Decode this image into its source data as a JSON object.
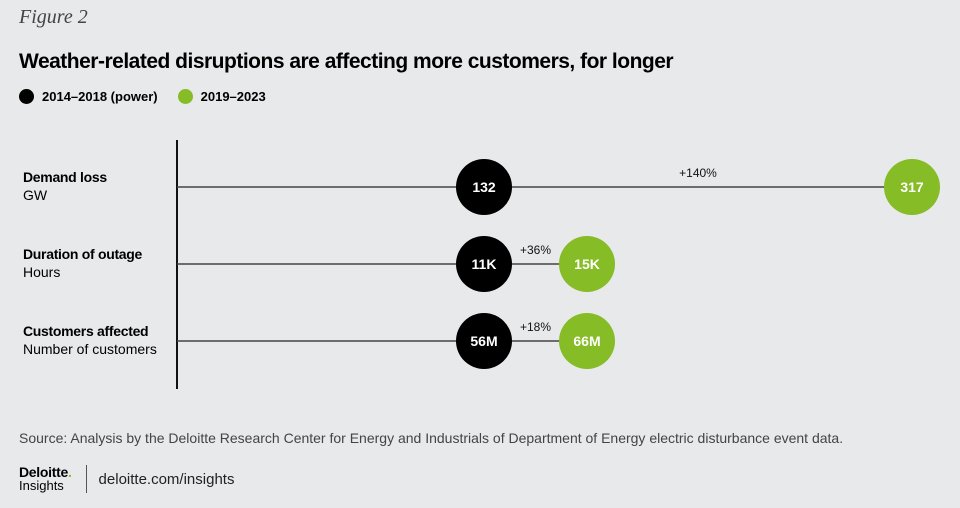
{
  "figure_label": "Figure 2",
  "colors": {
    "series_a": "#000000",
    "series_b": "#86bc25",
    "line": "#333333",
    "background": "#e8e9eb"
  },
  "chart_data": {
    "type": "dot-plot",
    "title": "Weather-related disruptions are affecting more customers, for longer",
    "legend": [
      {
        "label": "2014–2018 (power)",
        "color": "#000000"
      },
      {
        "label": "2019–2023",
        "color": "#86bc25"
      }
    ],
    "legend_position": "top-left",
    "rows": [
      {
        "name": "Demand loss",
        "unit": "GW",
        "value_a": 132,
        "label_a": "132",
        "value_b": 317,
        "label_b": "317",
        "change": "+140%"
      },
      {
        "name": "Duration of outage",
        "unit": "Hours",
        "value_a": 11000,
        "label_a": "11K",
        "value_b": 15000,
        "label_b": "15K",
        "change": "+36%"
      },
      {
        "name": "Customers affected",
        "unit": "Number of customers",
        "value_a": 56000000,
        "label_a": "56M",
        "value_b": 66000000,
        "label_b": "66M",
        "change": "+18%"
      }
    ],
    "change_pct": [
      140,
      36,
      18
    ]
  },
  "source": "Source: Analysis by the Deloitte Research Center for Energy and Industrials of Department of Energy electric disturbance event data.",
  "footer": {
    "brand": "Deloitte",
    "brand_dot": ".",
    "sub": "Insights",
    "url": "deloitte.com/insights"
  }
}
